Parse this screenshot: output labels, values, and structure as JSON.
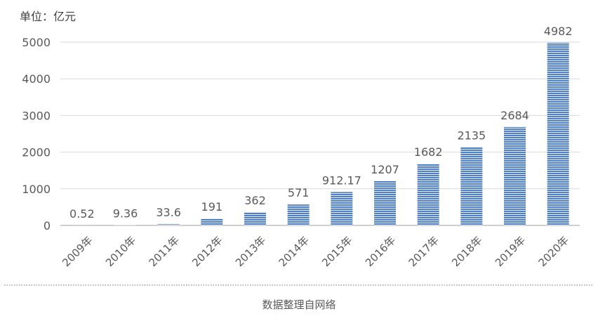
{
  "colors": {
    "bar": "#4f7fc4",
    "bar_stripe": "#ffffff",
    "grid": "#d9d9d9",
    "axis": "#bfbfbf",
    "text": "#595959",
    "divider": "#8c8c8c"
  },
  "chart_data": {
    "type": "bar",
    "unit_label": "单位：亿元",
    "categories": [
      "2009年",
      "2010年",
      "2011年",
      "2012年",
      "2013年",
      "2014年",
      "2015年",
      "2016年",
      "2017年",
      "2018年",
      "2019年",
      "2020年"
    ],
    "values": [
      0.52,
      9.36,
      33.6,
      191,
      362,
      571,
      912.17,
      1207,
      1682,
      2135,
      2684,
      4982
    ],
    "value_labels": [
      "0.52",
      "9.36",
      "33.6",
      "191",
      "362",
      "571",
      "912.17",
      "1207",
      "1682",
      "2135",
      "2684",
      "4982"
    ],
    "ylim": [
      0,
      5000
    ],
    "yticks": [
      "0",
      "1000",
      "2000",
      "3000",
      "4000",
      "5000"
    ],
    "grid": true,
    "legend": "none"
  },
  "footer": {
    "source": "数据整理自网络"
  }
}
